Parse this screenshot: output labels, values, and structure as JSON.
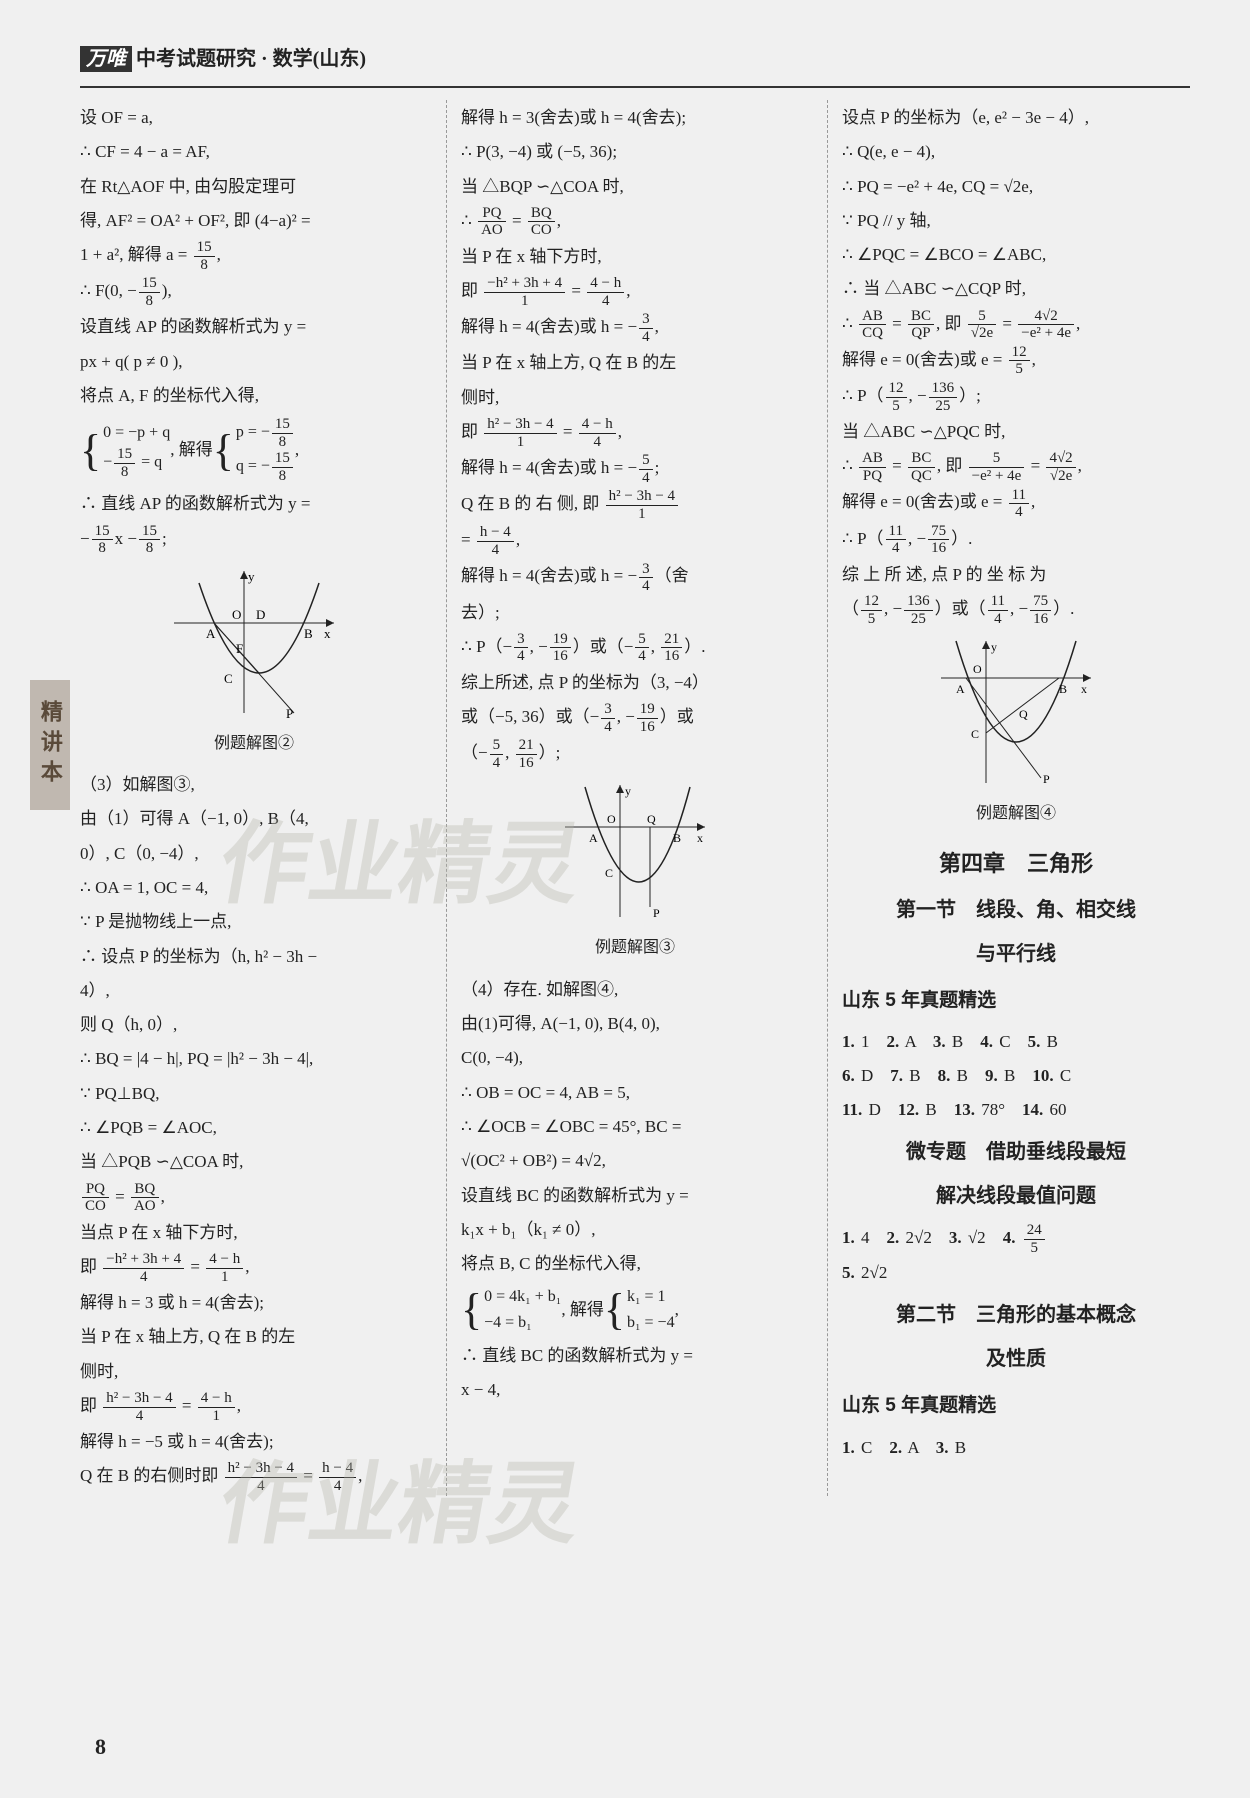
{
  "header": {
    "brand": "万唯",
    "title": "中考试题研究 · 数学(山东)"
  },
  "sideTab": "精讲本",
  "pageNumber": "8",
  "watermark": "作业精灵",
  "figures": {
    "fig2": {
      "caption": "例题解图②",
      "labels": [
        "y",
        "x",
        "O",
        "D",
        "A",
        "F",
        "B",
        "C",
        "P"
      ]
    },
    "fig3": {
      "caption": "例题解图③",
      "labels": [
        "y",
        "x",
        "O",
        "Q",
        "A",
        "B",
        "C",
        "P"
      ]
    },
    "fig4": {
      "caption": "例题解图④",
      "labels": [
        "y",
        "x",
        "O",
        "A",
        "B",
        "C",
        "Q",
        "P"
      ]
    }
  },
  "col1": {
    "l1": "设 OF = a,",
    "l2": "∴ CF = 4 − a = AF,",
    "l3": "在 Rt△AOF 中, 由勾股定理可",
    "l4": "得, AF² = OA² + OF², 即 (4−a)² =",
    "l5a": "1 + a², 解得 a = ",
    "l5b": ",",
    "l6a": "∴ F(0, −",
    "l6b": "),",
    "l7": "设直线 AP 的函数解析式为 y =",
    "l8": "px + q( p ≠ 0 ),",
    "l9": "将点 A, F 的坐标代入得,",
    "sys1_r1": "0 = −p + q",
    "sys1_r2a": "−",
    "sys1_r2b": " = q",
    "sys1_mid": ", 解得",
    "sys1b_r1a": "p = −",
    "sys1b_r2a": "q = −",
    "l10": "∴ 直线 AP 的函数解析式为 y =",
    "l11a": "−",
    "l11b": "x −",
    "l11c": ";",
    "l12": "（3）如解图③,",
    "l13": "由（1）可得 A（−1, 0）, B（4,",
    "l14": "0）, C（0, −4）,",
    "l15": "∴ OA = 1, OC = 4,",
    "l16": "∵ P 是抛物线上一点,",
    "l17": "∴ 设点 P 的坐标为（h, h² − 3h −",
    "l18": "4）,",
    "l19": "则 Q（h, 0）,",
    "l20": "∴ BQ = |4 − h|, PQ = |h² − 3h − 4|,",
    "l21": "∵ PQ⊥BQ,",
    "l22": "∴ ∠PQB = ∠AOC,",
    "l23": "当 △PQB ∽△COA 时,",
    "l24b": ",",
    "l25": "当点 P 在 x 轴下方时,",
    "l26a": "即 ",
    "l26b": " = ",
    "l26c": ",",
    "l27": "解得 h = 3 或 h = 4(舍去);",
    "l28": "当 P 在 x 轴上方, Q 在 B 的左",
    "l29": "侧时,",
    "l30a": "即 ",
    "l30b": " = ",
    "l30c": ",",
    "l31": "解得 h = −5 或 h = 4(舍去);",
    "l32a": "Q 在 B 的右侧时即 ",
    "l32b": " = ",
    "l32c": ","
  },
  "col2": {
    "l1": "解得 h = 3(舍去)或 h = 4(舍去);",
    "l2": "∴ P(3, −4) 或 (−5, 36);",
    "l3": "当 △BQP ∽△COA 时,",
    "l4a": "∴ ",
    "l4b": " = ",
    "l4c": ",",
    "l5": "当 P 在 x 轴下方时,",
    "l6a": "即 ",
    "l6b": " = ",
    "l6c": ",",
    "l7a": "解得 h = 4(舍去)或 h = −",
    "l7b": ",",
    "l8": "当 P 在 x 轴上方, Q 在 B 的左",
    "l9": "侧时,",
    "l10a": "即 ",
    "l10b": " = ",
    "l10c": ",",
    "l11a": "解得 h = 4(舍去)或 h = −",
    "l11b": ";",
    "l12a": "Q 在 B 的 右 侧, 即 ",
    "l13a": "= ",
    "l13b": ",",
    "l14a": "解得 h = 4(舍去)或 h = −",
    "l14b": "（舍",
    "l15": "去）;",
    "l16a": "∴ P（−",
    "l16b": ", −",
    "l16c": "）或（−",
    "l16d": ", ",
    "l16e": "）.",
    "l17": "综上所述, 点 P 的坐标为（3, −4）",
    "l18a": "或（−5, 36）或（−",
    "l18b": ", −",
    "l18c": "）或",
    "l19a": "（−",
    "l19b": ", ",
    "l19c": "）;",
    "l20": "（4）存在. 如解图④,",
    "l21": "由(1)可得, A(−1, 0), B(4, 0),",
    "l22": "C(0, −4),",
    "l23": "∴ OB = OC = 4, AB = 5,",
    "l24": "∴ ∠OCB = ∠OBC = 45°, BC =",
    "l25a": "",
    "l25b": " = 4√2,",
    "l26": "设直线 BC 的函数解析式为 y =",
    "l27": "k₁x + b₁（k₁ ≠ 0）,",
    "l28": "将点 B, C 的坐标代入得,",
    "sys2_r1": "0 = 4k₁ + b₁",
    "sys2_r2": "−4 = b₁",
    "sys2_mid": ", 解得",
    "sys2b_r1": "k₁ = 1",
    "sys2b_r2": "b₁ = −4",
    "l29": "∴ 直线 BC 的函数解析式为 y =",
    "l30": "x − 4,"
  },
  "col3": {
    "l1": "设点 P 的坐标为（e, e² − 3e − 4）,",
    "l2": "∴ Q(e, e − 4),",
    "l3": "∴ PQ = −e² + 4e, CQ = √2e,",
    "l4": "∵ PQ // y 轴,",
    "l5": "∴ ∠PQC = ∠BCO = ∠ABC,",
    "l6": "∴ 当 △ABC ∽△CQP 时,",
    "l7a": "∴ ",
    "l7b": " = ",
    "l7c": ", 即 ",
    "l7d": " = ",
    "l7e": ",",
    "l8a": "解得 e = 0(舍去)或 e = ",
    "l8b": ",",
    "l9a": "∴ P（",
    "l9b": ", −",
    "l9c": "）;",
    "l10": "当 △ABC ∽△PQC 时,",
    "l11a": "∴ ",
    "l11b": " = ",
    "l11c": ", 即 ",
    "l11d": " = ",
    "l11e": ",",
    "l12a": "解得 e = 0(舍去)或 e = ",
    "l12b": ",",
    "l13a": "∴ P（",
    "l13b": ", −",
    "l13c": "）.",
    "l14": "综 上 所 述, 点 P 的 坐 标 为",
    "l15a": "（",
    "l15b": ", −",
    "l15c": "）或（",
    "l15d": ", −",
    "l15e": "）.",
    "ch4_title": "第四章　三角形",
    "ch4_s1_title": "第一节　线段、角、相交线",
    "ch4_s1_title2": "与平行线",
    "exam1_head": "山东 5 年真题精选",
    "ch4_s2_title": "微专题　借助垂线段最短",
    "ch4_s2_title2": "解决线段最值问题",
    "ch4_s3_title": "第二节　三角形的基本概念",
    "ch4_s3_title2": "及性质",
    "exam2_head": "山东 5 年真题精选"
  },
  "answers": {
    "set1": [
      {
        "n": "1.",
        "v": "1"
      },
      {
        "n": "2.",
        "v": "A"
      },
      {
        "n": "3.",
        "v": "B"
      },
      {
        "n": "4.",
        "v": "C"
      },
      {
        "n": "5.",
        "v": "B"
      },
      {
        "n": "6.",
        "v": "D"
      },
      {
        "n": "7.",
        "v": "B"
      },
      {
        "n": "8.",
        "v": "B"
      },
      {
        "n": "9.",
        "v": "B"
      },
      {
        "n": "10.",
        "v": "C"
      },
      {
        "n": "11.",
        "v": "D"
      },
      {
        "n": "12.",
        "v": "B"
      },
      {
        "n": "13.",
        "v": "78°"
      },
      {
        "n": "14.",
        "v": "60"
      }
    ],
    "set2_a": [
      {
        "n": "1.",
        "v": "4"
      },
      {
        "n": "2.",
        "v": "2√2"
      },
      {
        "n": "3.",
        "v": "√2"
      }
    ],
    "set2_a4n": "4.",
    "set2_b": [
      {
        "n": "5.",
        "v": "2√2"
      }
    ],
    "set3": [
      {
        "n": "1.",
        "v": "C"
      },
      {
        "n": "2.",
        "v": "A"
      },
      {
        "n": "3.",
        "v": "B"
      }
    ]
  },
  "fractions": {
    "f158": {
      "n": "15",
      "d": "8"
    },
    "f34": {
      "n": "3",
      "d": "4"
    },
    "f54": {
      "n": "5",
      "d": "4"
    },
    "f1916": {
      "n": "19",
      "d": "16"
    },
    "f2116": {
      "n": "21",
      "d": "16"
    },
    "f125": {
      "n": "12",
      "d": "5"
    },
    "f13625": {
      "n": "136",
      "d": "25"
    },
    "f114": {
      "n": "11",
      "d": "4"
    },
    "f7516": {
      "n": "75",
      "d": "16"
    },
    "f245": {
      "n": "24",
      "d": "5"
    },
    "pq_co": {
      "n": "PQ",
      "d": "CO"
    },
    "bq_ao": {
      "n": "BQ",
      "d": "AO"
    },
    "pq_ao": {
      "n": "PQ",
      "d": "AO"
    },
    "bq_co": {
      "n": "BQ",
      "d": "CO"
    },
    "ab_cq": {
      "n": "AB",
      "d": "CQ"
    },
    "bc_qp": {
      "n": "BC",
      "d": "QP"
    },
    "ab_pq": {
      "n": "AB",
      "d": "PQ"
    },
    "bc_qc": {
      "n": "BC",
      "d": "QC"
    },
    "nh4a": {
      "n": "−h² + 3h + 4",
      "d": "4"
    },
    "d4h1": {
      "n": "4 − h",
      "d": "1"
    },
    "h3h4_4": {
      "n": "h² − 3h − 4",
      "d": "4"
    },
    "d4h1b": {
      "n": "4 − h",
      "d": "1"
    },
    "h3h4_1": {
      "n": "h² − 3h − 4",
      "d": "1"
    },
    "dh4_4": {
      "n": "h − 4",
      "d": "4"
    },
    "nh1": {
      "n": "−h² + 3h + 4",
      "d": "1"
    },
    "d4h4": {
      "n": "4 − h",
      "d": "4"
    },
    "h3h4_1b": {
      "n": "h² − 3h − 4",
      "d": "1"
    },
    "d4h4b": {
      "n": "4 − h",
      "d": "4"
    },
    "f5_s2e": {
      "n": "5",
      "d": "√2e"
    },
    "f4s2_ne": {
      "n": "4√2",
      "d": "−e² + 4e"
    },
    "f5_ne": {
      "n": "5",
      "d": "−e² + 4e"
    },
    "f4s2_s2e": {
      "n": "4√2",
      "d": "√2e"
    }
  },
  "sqrt": {
    "ocob": "√(OC² + OB²)"
  }
}
